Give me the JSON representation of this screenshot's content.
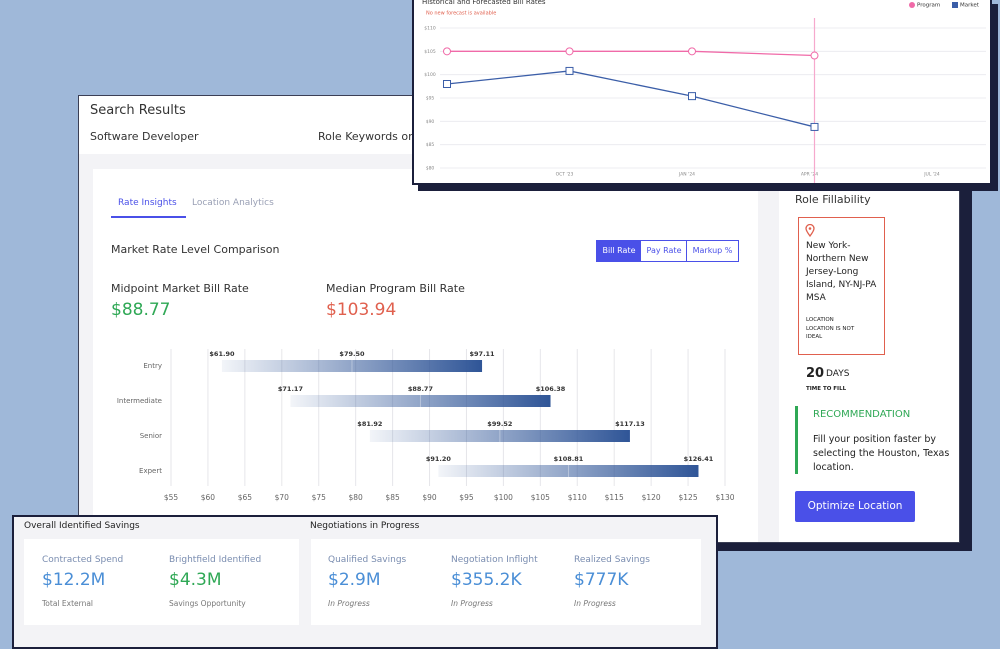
{
  "search": {
    "title": "Search Results",
    "role": "Software Developer",
    "keywords_label": "Role Keywords or"
  },
  "tabs": [
    "Rate Insights",
    "Location Analytics"
  ],
  "section_title": "Market Rate Level Comparison",
  "toggles": [
    "Bill Rate",
    "Pay Rate",
    "Markup %"
  ],
  "metrics": [
    {
      "label": "Midpoint Market Bill Rate",
      "value": "$88.77"
    },
    {
      "label": "Median Program Bill Rate",
      "value": "$103.94"
    }
  ],
  "fillability": {
    "title": "Role Fillability",
    "location": "New York-Northern New Jersey-Long Island, NY-NJ-PA MSA",
    "location_caption": "LOCATION",
    "location_note": "LOCATION IS NOT IDEAL",
    "days": "20",
    "days_unit": "DAYS",
    "days_caption": "TIME TO FILL",
    "recommendation_title": "RECOMMENDATION",
    "recommendation_text": "Fill your position faster by selecting the Houston, Texas location.",
    "button": "Optimize Location"
  },
  "savings": {
    "overall_title": "Overall Identified Savings",
    "negotiations_title": "Negotiations in Progress",
    "overall": [
      {
        "label": "Contracted Spend",
        "value": "$12.2M",
        "note": "Total External"
      },
      {
        "label": "Brightfield Identified",
        "value": "$4.3M",
        "note": "Savings Opportunity"
      }
    ],
    "negotiations": [
      {
        "label": "Qualified Savings",
        "value": "$2.9M",
        "note": "In Progress"
      },
      {
        "label": "Negotiation Inflight",
        "value": "$355.2K",
        "note": "In Progress"
      },
      {
        "label": "Realized Savings",
        "value": "$777K",
        "note": "In Progress"
      }
    ]
  },
  "chart_data": [
    {
      "type": "range-bar",
      "categories": [
        "Entry",
        "Intermediate",
        "Senior",
        "Expert"
      ],
      "values": [
        [
          61.9,
          79.5,
          97.11
        ],
        [
          71.17,
          88.77,
          106.38
        ],
        [
          81.92,
          99.52,
          117.13
        ],
        [
          91.2,
          108.81,
          126.41
        ]
      ],
      "value_labels": [
        [
          "$61.90",
          "$79.50",
          "$97.11"
        ],
        [
          "$71.17",
          "$88.77",
          "$106.38"
        ],
        [
          "$81.92",
          "$99.52",
          "$117.13"
        ],
        [
          "$91.20",
          "$108.81",
          "$126.41"
        ]
      ],
      "xlim": [
        55,
        130
      ],
      "xticks": [
        {
          "value": 55,
          "label": "$55"
        },
        {
          "value": 60,
          "label": "$60"
        },
        {
          "value": 65,
          "label": "$65"
        },
        {
          "value": 70,
          "label": "$70"
        },
        {
          "value": 75,
          "label": "$75"
        },
        {
          "value": 80,
          "label": "$80"
        },
        {
          "value": 85,
          "label": "$85"
        },
        {
          "value": 90,
          "label": "$90"
        },
        {
          "value": 95,
          "label": "$95"
        },
        {
          "value": 100,
          "label": "$100"
        },
        {
          "value": 105,
          "label": "$105"
        },
        {
          "value": 110,
          "label": "$110"
        },
        {
          "value": 115,
          "label": "$115"
        },
        {
          "value": 120,
          "label": "$120"
        },
        {
          "value": 125,
          "label": "$125"
        },
        {
          "value": 130,
          "label": "$130"
        }
      ],
      "color": "#2f5597",
      "grid": true
    },
    {
      "type": "line",
      "title": "Historical and Forecasted Bill Rates",
      "subtitle": "No new forecast is available",
      "categories": [
        null,
        "OCT '23",
        "JAN '24",
        "APR '24",
        "JUL '24"
      ],
      "series": [
        {
          "name": "Program",
          "color": "#f06aa8",
          "values": [
            105,
            105,
            105,
            104.1,
            null
          ]
        },
        {
          "name": "Market",
          "color": "#3b5ea8",
          "values": [
            98,
            100.8,
            95.4,
            88.8,
            null
          ]
        }
      ],
      "ylim": [
        80,
        110
      ],
      "yticks": [
        {
          "value": 110,
          "label": "$110"
        },
        {
          "value": 105,
          "label": "$105"
        },
        {
          "value": 100,
          "label": "$100"
        },
        {
          "value": 95,
          "label": "$95"
        },
        {
          "value": 90,
          "label": "$90"
        },
        {
          "value": 85,
          "label": "$85"
        },
        {
          "value": 80,
          "label": "$80"
        }
      ],
      "grid": true,
      "legend": "top-right"
    }
  ]
}
